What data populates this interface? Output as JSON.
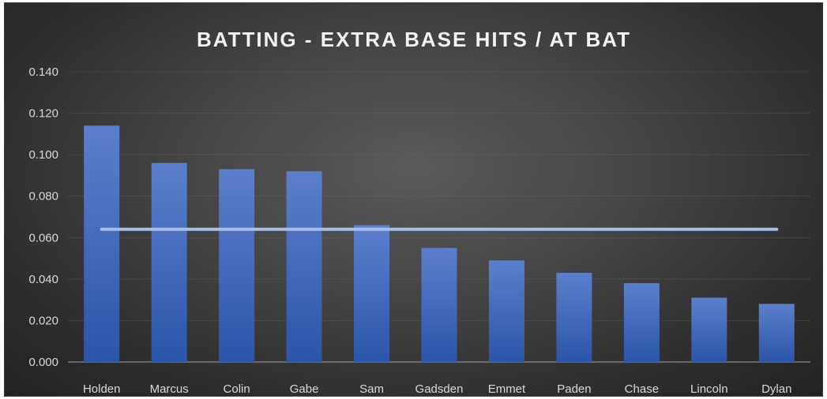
{
  "chart_data": {
    "type": "bar",
    "title": "BATTING - EXTRA BASE HITS / AT BAT",
    "categories": [
      "Holden",
      "Marcus",
      "Colin",
      "Gabe",
      "Sam",
      "Gadsden",
      "Emmet",
      "Paden",
      "Chase",
      "Lincoln",
      "Dylan"
    ],
    "values": [
      0.114,
      0.096,
      0.093,
      0.092,
      0.066,
      0.055,
      0.049,
      0.043,
      0.038,
      0.031,
      0.028
    ],
    "reference_line": 0.064,
    "ylim": [
      0,
      0.14
    ],
    "yticks": [
      "0.000",
      "0.020",
      "0.040",
      "0.060",
      "0.080",
      "0.100",
      "0.120",
      "0.140"
    ],
    "grid": true,
    "colors": {
      "bar_top": "#5b7fcc",
      "bar_bottom": "#2c55a8",
      "line": "#a9bde6"
    }
  }
}
